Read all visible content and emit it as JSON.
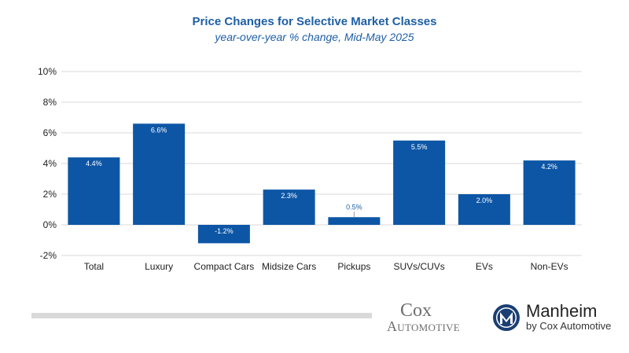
{
  "chart_data": {
    "type": "bar",
    "title": "Price Changes for Selective Market Classes",
    "subtitle": "year-over-year % change, Mid-May 2025",
    "categories": [
      "Total",
      "Luxury",
      "Compact Cars",
      "Midsize Cars",
      "Pickups",
      "SUVs/CUVs",
      "EVs",
      "Non-EVs"
    ],
    "values": [
      4.4,
      6.6,
      -1.2,
      2.3,
      0.5,
      5.5,
      2.0,
      4.2
    ],
    "data_labels": [
      "4.4%",
      "6.6%",
      "-1.2%",
      "2.3%",
      "0.5%",
      "5.5%",
      "2.0%",
      "4.2%"
    ],
    "ylim": [
      -2,
      10
    ],
    "yticks": [
      -2,
      0,
      2,
      4,
      6,
      8,
      10
    ],
    "ytick_labels": [
      "-2%",
      "0%",
      "2%",
      "4%",
      "6%",
      "8%",
      "10%"
    ],
    "xlabel": "",
    "ylabel": "",
    "grid": true,
    "legend": "none",
    "colors": {
      "bar": "#0d56a6",
      "grid": "#d9d9d9",
      "title": "#1f5fa5",
      "label_outside": "#1f5fa5",
      "label_inside": "#ffffff"
    }
  },
  "logos": {
    "cox_top": "Cox",
    "cox_bottom": "Automotive",
    "manheim_name": "Manheim",
    "manheim_sub": "by Cox Automotive",
    "manheim_emblem_icon": "manheim-m-emblem"
  }
}
